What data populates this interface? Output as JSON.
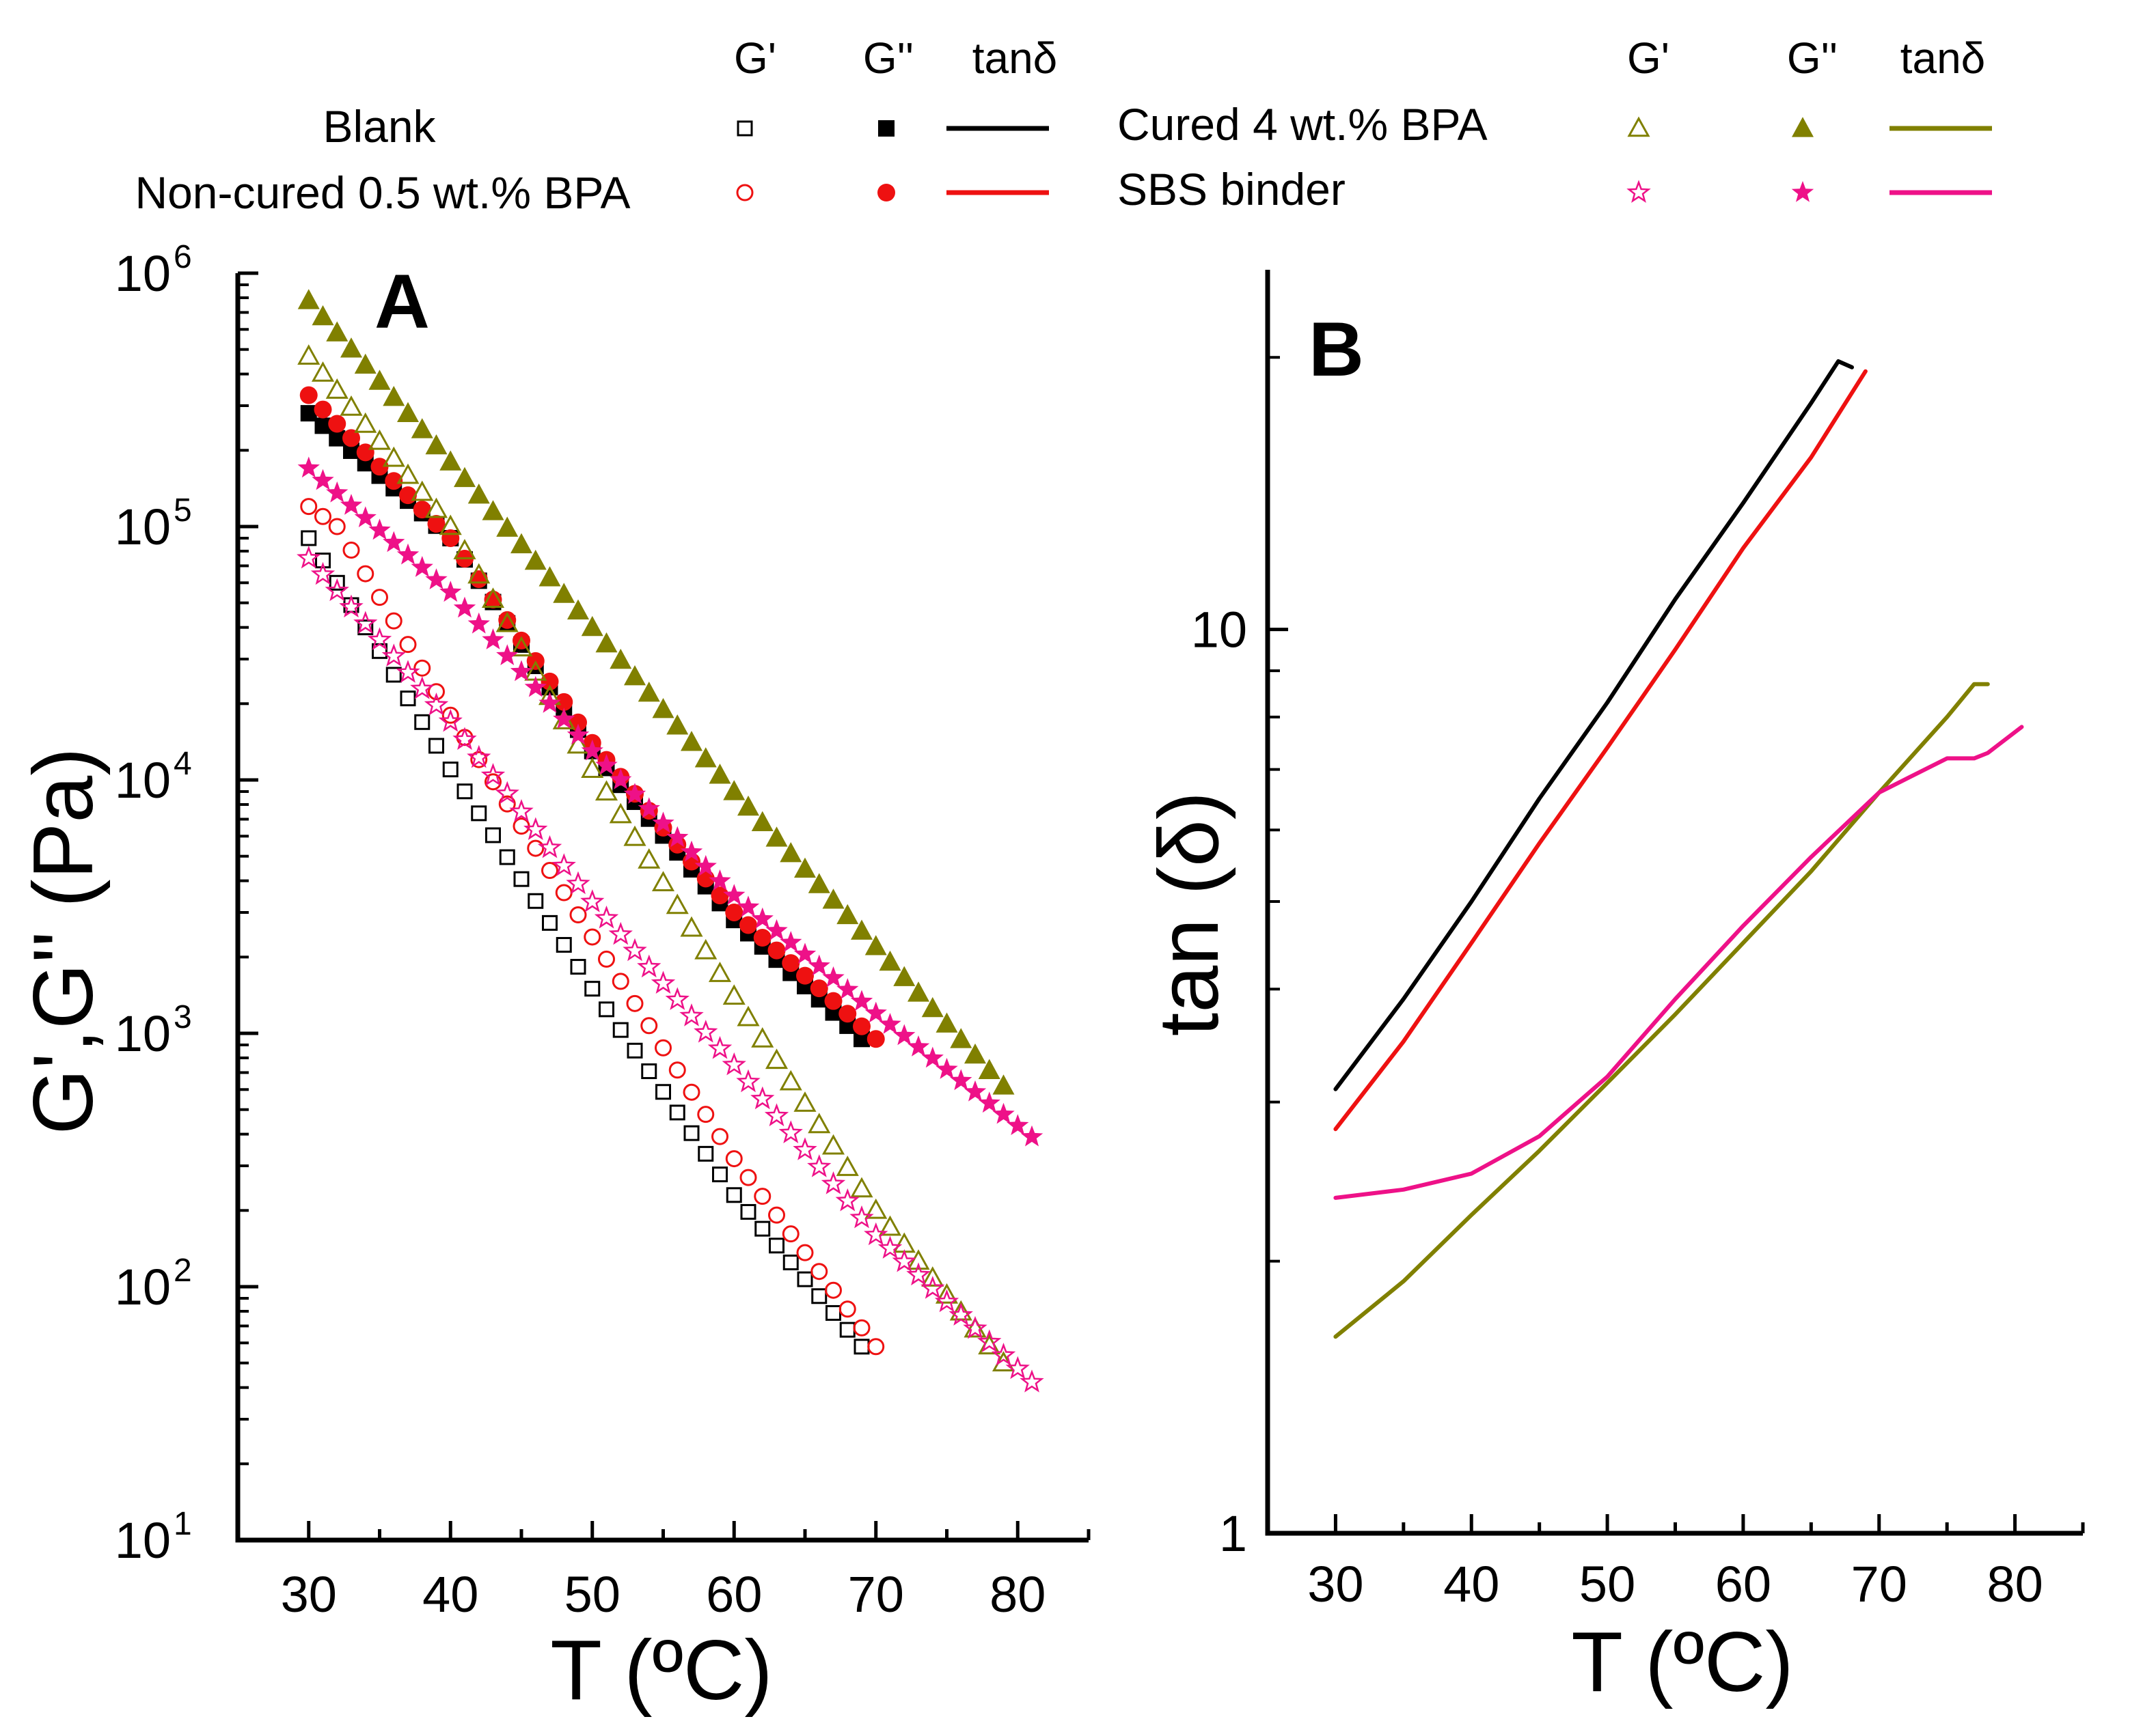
{
  "legend": {
    "headers_left": [
      "G'",
      "G''",
      "tanδ"
    ],
    "headers_right": [
      "G'",
      "G''",
      "tanδ"
    ],
    "entries": [
      {
        "name": "Blank",
        "color": "#000000",
        "g1_marker": "open-square",
        "g2_marker": "filled-square"
      },
      {
        "name": "Non-cured 0.5 wt.% BPA",
        "color": "#ee1111",
        "g1_marker": "open-circle",
        "g2_marker": "filled-circle"
      },
      {
        "name": "Cured 4 wt.% BPA",
        "color": "#808000",
        "g1_marker": "open-triangle",
        "g2_marker": "filled-triangle"
      },
      {
        "name": "SBS binder",
        "color": "#ee1188",
        "g1_marker": "open-star",
        "g2_marker": "filled-star"
      }
    ]
  },
  "chart_data": [
    {
      "type": "scatter",
      "panel_label": "A",
      "xlabel": "T (ºC)",
      "ylabel": "G',G'' (Pa)",
      "xlim": [
        25,
        85
      ],
      "ylim": [
        10,
        1000000
      ],
      "yscale": "log",
      "x_ticks": [
        30,
        40,
        50,
        60,
        70,
        80
      ],
      "x_tick_labels": [
        "30",
        "40",
        "50",
        "60",
        "70",
        "80"
      ],
      "y_ticks": [
        1,
        2,
        3,
        4,
        5,
        6
      ],
      "y_tick_labels": [
        {
          "base": "10",
          "exp": "1"
        },
        {
          "base": "10",
          "exp": "2"
        },
        {
          "base": "10",
          "exp": "3"
        },
        {
          "base": "10",
          "exp": "4"
        },
        {
          "base": "10",
          "exp": "5"
        },
        {
          "base": "10",
          "exp": "6"
        }
      ],
      "x_step": 1,
      "series": [
        {
          "name": "Blank G'",
          "marker": "open-square",
          "color": "#000000",
          "x_start": 30,
          "x_end": 69,
          "anchors": [
            [
              30,
              90000
            ],
            [
              34,
              40000
            ],
            [
              40,
              11000
            ],
            [
              50,
              1500
            ],
            [
              60,
              230
            ],
            [
              69,
              58
            ]
          ]
        },
        {
          "name": "Blank G''",
          "marker": "filled-square",
          "color": "#000000",
          "x_start": 30,
          "x_end": 69,
          "anchors": [
            [
              30,
              280000
            ],
            [
              40,
              90000
            ],
            [
              50,
              13000
            ],
            [
              60,
              2800
            ],
            [
              69,
              950
            ]
          ]
        },
        {
          "name": "Non-cured 0.5 wt.% BPA G'",
          "marker": "open-circle",
          "color": "#ee1111",
          "x_start": 30,
          "x_end": 70,
          "anchors": [
            [
              30,
              120000
            ],
            [
              32,
              100000
            ],
            [
              40,
              18000
            ],
            [
              50,
              2400
            ],
            [
              60,
              320
            ],
            [
              70,
              58
            ]
          ]
        },
        {
          "name": "Non-cured 0.5 wt.% BPA G''",
          "marker": "filled-circle",
          "color": "#ee1111",
          "x_start": 30,
          "x_end": 70,
          "anchors": [
            [
              30,
              330000
            ],
            [
              40,
              90000
            ],
            [
              50,
              14000
            ],
            [
              60,
              3000
            ],
            [
              70,
              950
            ]
          ]
        },
        {
          "name": "Cured 4 wt.% BPA G'",
          "marker": "open-triangle",
          "color": "#808000",
          "x_start": 30,
          "x_end": 79,
          "anchors": [
            [
              30,
              470000
            ],
            [
              40,
              100000
            ],
            [
              50,
              11000
            ],
            [
              60,
              1400
            ],
            [
              70,
              200
            ],
            [
              79,
              50
            ]
          ]
        },
        {
          "name": "Cured 4 wt.% BPA G''",
          "marker": "filled-triangle",
          "color": "#808000",
          "x_start": 30,
          "x_end": 79,
          "anchors": [
            [
              30,
              780000
            ],
            [
              40,
              180000
            ],
            [
              50,
              40000
            ],
            [
              60,
              9000
            ],
            [
              70,
              2200
            ],
            [
              79,
              620
            ]
          ]
        },
        {
          "name": "SBS binder G'",
          "marker": "open-star",
          "color": "#ee1188",
          "x_start": 30,
          "x_end": 81,
          "anchors": [
            [
              30,
              75000
            ],
            [
              40,
              17000
            ],
            [
              50,
              3300
            ],
            [
              60,
              750
            ],
            [
              70,
              160
            ],
            [
              81,
              42
            ]
          ]
        },
        {
          "name": "SBS binder G''",
          "marker": "filled-star",
          "color": "#ee1188",
          "x_start": 30,
          "x_end": 81,
          "anchors": [
            [
              30,
              170000
            ],
            [
              40,
              55000
            ],
            [
              50,
              13000
            ],
            [
              60,
              3500
            ],
            [
              70,
              1200
            ],
            [
              81,
              390
            ]
          ]
        }
      ]
    },
    {
      "type": "line",
      "panel_label": "B",
      "xlabel": "T (ºC)",
      "ylabel": "tan (δ)",
      "xlim": [
        25,
        85
      ],
      "ylim": [
        1,
        25
      ],
      "yscale": "log",
      "x_ticks": [
        30,
        40,
        50,
        60,
        70,
        80
      ],
      "x_tick_labels": [
        "30",
        "40",
        "50",
        "60",
        "70",
        "80"
      ],
      "y_labeled_ticks": [
        1,
        10
      ],
      "y_tick_labels": [
        "1",
        "10"
      ],
      "y_minor_ticks": [
        2,
        3,
        4,
        5,
        6,
        7,
        8,
        9,
        20
      ],
      "series": [
        {
          "name": "Blank tanδ",
          "color": "#000000",
          "x": [
            30,
            35,
            40,
            45,
            50,
            55,
            60,
            65,
            67,
            68
          ],
          "y": [
            3.1,
            3.9,
            5.0,
            6.5,
            8.3,
            10.8,
            13.8,
            17.8,
            19.8,
            19.5
          ]
        },
        {
          "name": "Non-cured 0.5 wt.% BPA tanδ",
          "color": "#ee1111",
          "x": [
            30,
            35,
            40,
            45,
            50,
            55,
            60,
            65,
            69
          ],
          "y": [
            2.8,
            3.5,
            4.5,
            5.8,
            7.4,
            9.5,
            12.3,
            15.5,
            19.3
          ]
        },
        {
          "name": "Cured 4 wt.% BPA tanδ",
          "color": "#808000",
          "x": [
            30,
            35,
            40,
            45,
            50,
            55,
            60,
            65,
            70,
            75,
            77,
            78
          ],
          "y": [
            1.65,
            1.9,
            2.25,
            2.65,
            3.15,
            3.75,
            4.5,
            5.4,
            6.6,
            8.0,
            8.7,
            8.7
          ]
        },
        {
          "name": "SBS binder tanδ",
          "color": "#ee1188",
          "x": [
            30,
            35,
            40,
            45,
            50,
            55,
            60,
            65,
            70,
            75,
            77,
            78,
            80.5
          ],
          "y": [
            2.35,
            2.4,
            2.5,
            2.75,
            3.2,
            3.9,
            4.7,
            5.6,
            6.6,
            7.2,
            7.2,
            7.3,
            7.8
          ]
        }
      ]
    }
  ]
}
